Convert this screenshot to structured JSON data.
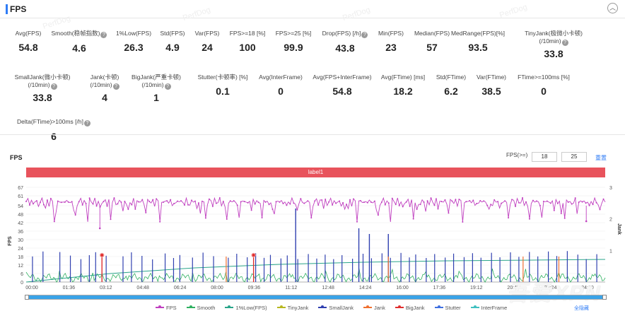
{
  "header": {
    "title": "FPS",
    "collapse_icon": "chevron-up-icon"
  },
  "watermark": "PerfDog",
  "stats_row1": [
    {
      "label": "Avg(FPS)",
      "value": "54.8",
      "help": false
    },
    {
      "label": "Smooth(稳帧指数)",
      "value": "4.6",
      "help": true
    },
    {
      "label": "1%Low(FPS)",
      "value": "26.3",
      "help": false
    },
    {
      "label": "Std(FPS)",
      "value": "4.9",
      "help": false
    },
    {
      "label": "Var(FPS)",
      "value": "24",
      "help": false
    },
    {
      "label": "FPS>=18 [%]",
      "value": "100",
      "help": false
    },
    {
      "label": "FPS>=25 [%]",
      "value": "99.9",
      "help": false
    },
    {
      "label": "Drop(FPS) [/h]",
      "value": "43.8",
      "help": true
    },
    {
      "label": "Min(FPS)",
      "value": "23",
      "help": false
    },
    {
      "label": "Median(FPS)",
      "value": "57",
      "help": false
    },
    {
      "label": "MedRange(FPS)[%]",
      "value": "93.5",
      "help": false
    },
    {
      "label": "TinyJank(极微小卡顿)",
      "label2": "(/10min)",
      "value": "33.8",
      "help": true
    }
  ],
  "stats_row2": [
    {
      "label": "SmallJank(微小卡顿)",
      "label2": "(/10min)",
      "value": "33.8",
      "help": true
    },
    {
      "label": "Jank(卡顿)",
      "label2": "(/10min)",
      "value": "4",
      "help": true
    },
    {
      "label": "BigJank(严重卡顿)",
      "label2": "(/10min)",
      "value": "1",
      "help": true
    },
    {
      "label": "Stutter(卡顿率) [%]",
      "value": "0.1",
      "help": false
    },
    {
      "label": "Avg(InterFrame)",
      "value": "0",
      "help": false
    },
    {
      "label": "Avg(FPS+InterFrame)",
      "value": "54.8",
      "help": false
    },
    {
      "label": "Avg(FTime) [ms]",
      "value": "18.2",
      "help": false
    },
    {
      "label": "Std(FTime)",
      "value": "6.2",
      "help": false
    },
    {
      "label": "Var(FTime)",
      "value": "38.5",
      "help": false
    },
    {
      "label": "FTime>=100ms [%]",
      "value": "0",
      "help": false
    }
  ],
  "stats_row3": [
    {
      "label": "Delta(FTime)>100ms [/h]",
      "value": "6",
      "help": true
    }
  ],
  "chart": {
    "title": "FPS",
    "fps_threshold_label": "FPS(>=)",
    "threshold1": "18",
    "threshold2": "25",
    "reset_label": "重置",
    "label_bar": "label1",
    "reset_all_label": "全隐藏",
    "brand": "吾爱XPN"
  },
  "legend": [
    {
      "name": "FPS",
      "color": "#c040c0"
    },
    {
      "name": "Smooth",
      "color": "#2fb060"
    },
    {
      "name": "1%Low(FPS)",
      "color": "#2aa58a"
    },
    {
      "name": "TinyJank",
      "color": "#b8b820"
    },
    {
      "name": "SmallJank",
      "color": "#3040b0"
    },
    {
      "name": "Jank",
      "color": "#f07030"
    },
    {
      "name": "BigJank",
      "color": "#e03030"
    },
    {
      "name": "Stutter",
      "color": "#4070e0"
    },
    {
      "name": "InterFrame",
      "color": "#40c0c0"
    }
  ],
  "chart_data": {
    "type": "line",
    "xlabel": "",
    "ylabel": "FPS",
    "y2label": "Jank",
    "ylim": [
      0,
      67
    ],
    "y2lim": [
      0,
      3
    ],
    "yticks": [
      0,
      6,
      12,
      18,
      24,
      30,
      36,
      42,
      48,
      54,
      61,
      67
    ],
    "y2ticks": [
      1,
      2,
      3
    ],
    "xticks": [
      "00:00",
      "01:36",
      "03:12",
      "04:48",
      "06:24",
      "08:00",
      "09:36",
      "11:12",
      "12:48",
      "14:24",
      "16:00",
      "17:36",
      "19:12",
      "20:48",
      "22:24",
      "24:00",
      "25:36",
      "27:12"
    ],
    "xtick_labels_shown": [
      "00:00",
      "01:36",
      "03:12",
      "04:48",
      "06:24",
      "08:00",
      "09:36",
      "11:12",
      "12:48",
      "14:24",
      "16:00",
      "17:36",
      "19:12",
      "20:48",
      "22:24",
      "24:00",
      "8:48"
    ],
    "xlim_minutes": [
      0,
      27.5
    ],
    "fps_pattern": [
      57,
      58,
      56,
      57,
      55,
      58,
      56,
      54,
      57,
      58,
      56,
      52,
      57,
      55,
      58,
      57,
      44,
      56,
      58,
      57,
      55,
      58,
      56,
      57,
      58,
      55,
      57,
      52,
      46,
      55,
      57,
      58,
      56,
      57,
      55,
      44,
      58,
      57,
      56,
      58,
      55,
      57,
      52,
      57,
      56,
      58,
      55,
      57,
      45,
      57,
      58,
      56,
      55,
      57,
      58,
      49,
      57,
      56,
      58,
      57,
      55,
      58,
      53,
      57,
      56,
      58,
      57,
      55,
      50,
      57,
      58,
      56,
      57,
      55,
      58,
      57,
      44,
      55,
      57,
      58,
      56,
      57,
      58,
      53,
      57,
      55
    ],
    "fps_min_markers": [
      [
        3.5,
        38
      ],
      [
        26.6,
        43
      ]
    ],
    "smooth_baseline": 3,
    "one_pct_low_curve": [
      [
        0,
        0
      ],
      [
        4,
        6
      ],
      [
        8,
        10
      ],
      [
        12,
        12.5
      ],
      [
        16,
        14
      ],
      [
        20,
        15
      ],
      [
        24,
        15.5
      ],
      [
        27.5,
        16
      ]
    ],
    "smalljank_times": [
      0.3,
      0.8,
      1.6,
      2.1,
      2.6,
      3.0,
      3.3,
      3.8,
      4.6,
      5.0,
      5.5,
      6.0,
      6.6,
      7.0,
      7.3,
      7.9,
      8.4,
      8.9,
      9.6,
      10.0,
      10.5,
      10.9,
      11.3,
      11.6,
      12.1,
      12.4,
      12.9,
      13.4,
      13.8,
      14.2,
      14.6,
      15.0,
      15.5,
      16.0,
      16.4,
      16.9,
      17.3,
      17.8,
      18.2,
      18.5,
      19.0,
      19.4,
      19.9,
      20.3,
      20.8,
      21.2,
      21.6,
      22.1,
      22.5,
      23.0,
      23.4,
      23.9,
      24.3,
      24.8,
      25.2,
      25.7,
      26.2,
      26.6,
      27.1
    ],
    "bigjank_times": [
      3.6,
      10.8
    ],
    "jank_times": [
      9.5,
      17.2,
      23.6,
      25.3
    ],
    "tall_spikes": [
      [
        12.8,
        52
      ],
      [
        15.8,
        38
      ],
      [
        16.3,
        34
      ],
      [
        17.2,
        34
      ]
    ]
  }
}
